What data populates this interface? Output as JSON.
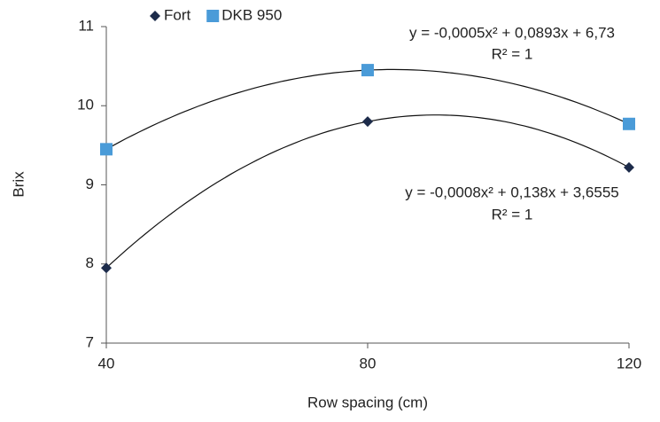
{
  "chart_data": {
    "type": "scatter",
    "x_label": "Row spacing (cm)",
    "y_label": "Brix",
    "x": [
      40,
      80,
      120
    ],
    "series": [
      {
        "name": "Fort",
        "color": "#1c2b4a",
        "marker": "diamond",
        "values": [
          7.95,
          9.8,
          9.22
        ],
        "equation": "y = -0,0008x² + 0,138x + 3,6555",
        "r2": "R² = 1"
      },
      {
        "name": "DKB 950",
        "color": "#4a9bd8",
        "marker": "square",
        "values": [
          9.45,
          10.45,
          9.77
        ],
        "equation": "y = -0,0005x² + 0,0893x + 6,73",
        "r2": "R² = 1"
      }
    ],
    "xlim": [
      40,
      120
    ],
    "xticks": [
      40,
      80,
      120
    ],
    "ylim": [
      7,
      11
    ],
    "yticks": [
      7,
      8,
      9,
      10,
      11
    ],
    "trendline": "polynomial",
    "grid": false,
    "legend": "top"
  }
}
